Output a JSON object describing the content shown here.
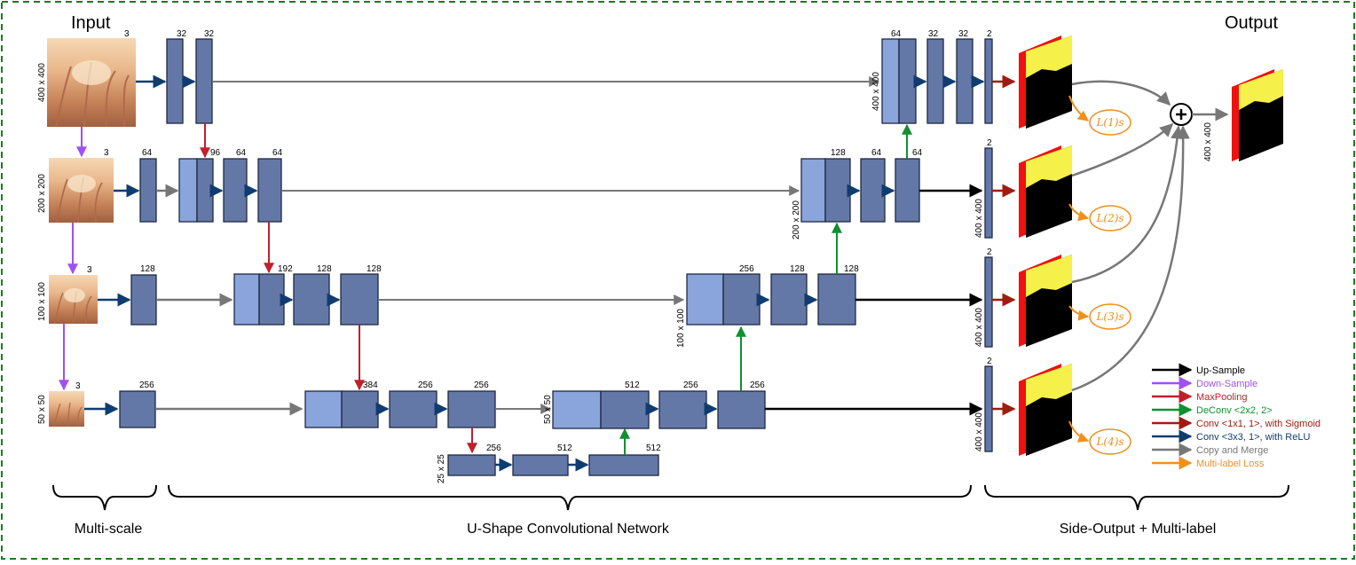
{
  "titles": {
    "input": "Input",
    "output": "Output"
  },
  "sections": {
    "multiscale": "Multi-scale",
    "unet": "U-Shape Convolutional Network",
    "side": "Side-Output + Multi-label"
  },
  "channels": {
    "in1": "3",
    "in2": "3",
    "in3": "3",
    "in4": "3",
    "e1a": "32",
    "e1b": "32",
    "e2a": "64",
    "e2c": "96",
    "e2d": "64",
    "e2e": "64",
    "e3a": "128",
    "e3c": "192",
    "e3d": "128",
    "e3e": "128",
    "e4a": "256",
    "e4c": "384",
    "e4d": "256",
    "e4e": "256",
    "b1": "256",
    "b2": "512",
    "b3": "512",
    "d4c": "512",
    "d4d": "256",
    "d4e": "256",
    "d3c": "256",
    "d3d": "128",
    "d3e": "128",
    "d2c": "128",
    "d2d": "64",
    "d2e": "64",
    "d1c": "64",
    "d1d": "32",
    "d1e": "32",
    "d1f": "2",
    "s2": "2",
    "s3": "2",
    "s4": "2"
  },
  "sizes": {
    "in1": "400 x 400",
    "in2": "200 x 200",
    "in3": "100 x 100",
    "in4": "50 x 50",
    "bot": "25 x 25",
    "d4": "50 x 50",
    "d3": "100 x 100",
    "d2": "200 x 200",
    "d1": "400 x 400",
    "s2": "400 x 400",
    "s3": "400 x 400",
    "s4": "400 x 400",
    "out": "400 x 400"
  },
  "losses": {
    "l1": "L(1)s",
    "l2": "L(2)s",
    "l3": "L(3)s",
    "l4": "L(4)s"
  },
  "legend": [
    {
      "label": "Up-Sample",
      "color": "#000000"
    },
    {
      "label": "Down-Sample",
      "color": "#a050f0"
    },
    {
      "label": "MaxPooling",
      "color": "#c0202c"
    },
    {
      "label": "DeConv <2x2, 2>",
      "color": "#109030"
    },
    {
      "label": "Conv <1x1, 1>, with Sigmoid",
      "color": "#a01c10"
    },
    {
      "label": "Conv <3x3, 1>, with ReLU",
      "color": "#103c70"
    },
    {
      "label": "Copy and Merge",
      "color": "#777777"
    },
    {
      "label": "Multi-label Loss",
      "color": "#f0901c"
    }
  ],
  "colors": {
    "block": "#6478a8",
    "block_light": "#8aa4dc",
    "border": "#1f7a1f",
    "map_red": "#f01010",
    "map_yellow": "#f5f04a"
  }
}
